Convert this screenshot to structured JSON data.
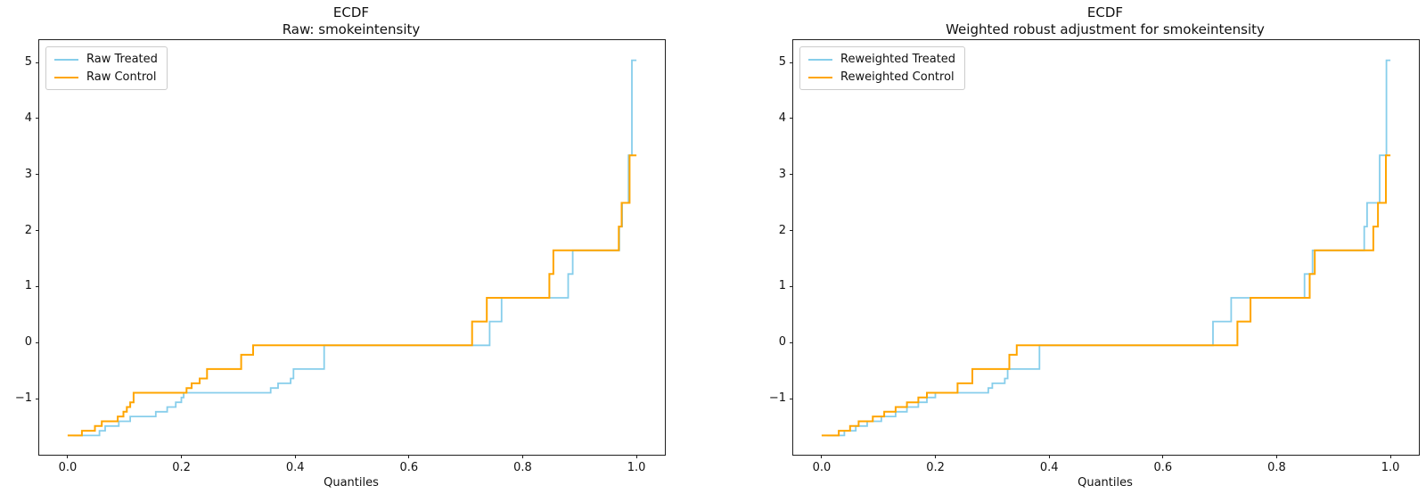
{
  "figure": {
    "background": "#ffffff"
  },
  "colors": {
    "treated": "#87CEEB",
    "control": "#FFA500",
    "spine": "#1f1f1f"
  },
  "chart_data": [
    {
      "type": "line",
      "line_style": "step-quantile-ecdf",
      "title_line1": "ECDF",
      "title_line2": "Raw: smokeintensity",
      "xlabel": "Quantiles",
      "xlim": [
        -0.05,
        1.05
      ],
      "ylim": [
        -2.0,
        5.4
      ],
      "xticks": [
        0.0,
        0.2,
        0.4,
        0.6,
        0.8,
        1.0
      ],
      "xtick_labels": [
        "0.0",
        "0.2",
        "0.4",
        "0.6",
        "0.8",
        "1.0"
      ],
      "yticks": [
        -1,
        0,
        1,
        2,
        3,
        4,
        5
      ],
      "ytick_labels": [
        "−1",
        "0",
        "1",
        "2",
        "3",
        "4",
        "5"
      ],
      "grid": false,
      "legend_position": "upper-left",
      "series": [
        {
          "name": "Raw Treated",
          "color": "#87CEEB",
          "end": 1.0,
          "steps": [
            [
              0.01,
              -1.657
            ],
            [
              0.056,
              -1.572
            ],
            [
              0.066,
              -1.487
            ],
            [
              0.09,
              -1.403
            ],
            [
              0.11,
              -1.318
            ],
            [
              0.155,
              -1.233
            ],
            [
              0.175,
              -1.148
            ],
            [
              0.19,
              -1.064
            ],
            [
              0.2,
              -0.979
            ],
            [
              0.204,
              -0.894
            ],
            [
              0.357,
              -0.809
            ],
            [
              0.37,
              -0.725
            ],
            [
              0.392,
              -0.64
            ],
            [
              0.397,
              -0.47
            ],
            [
              0.451,
              -0.047
            ],
            [
              0.742,
              0.377
            ],
            [
              0.763,
              0.801
            ],
            [
              0.88,
              1.225
            ],
            [
              0.888,
              1.648
            ],
            [
              0.97,
              2.072
            ],
            [
              0.975,
              2.496
            ],
            [
              0.986,
              3.344
            ],
            [
              0.992,
              5.04
            ]
          ]
        },
        {
          "name": "Raw Control",
          "color": "#FFA500",
          "end": 1.0,
          "steps": [
            [
              0.0,
              -1.657
            ],
            [
              0.025,
              -1.572
            ],
            [
              0.048,
              -1.487
            ],
            [
              0.06,
              -1.403
            ],
            [
              0.088,
              -1.318
            ],
            [
              0.098,
              -1.233
            ],
            [
              0.104,
              -1.148
            ],
            [
              0.11,
              -1.064
            ],
            [
              0.116,
              -0.894
            ],
            [
              0.209,
              -0.809
            ],
            [
              0.218,
              -0.725
            ],
            [
              0.232,
              -0.64
            ],
            [
              0.245,
              -0.47
            ],
            [
              0.305,
              -0.216
            ],
            [
              0.326,
              -0.047
            ],
            [
              0.711,
              0.377
            ],
            [
              0.737,
              0.801
            ],
            [
              0.847,
              1.225
            ],
            [
              0.854,
              1.648
            ],
            [
              0.969,
              2.072
            ],
            [
              0.974,
              2.496
            ],
            [
              0.988,
              3.344
            ]
          ]
        }
      ]
    },
    {
      "type": "line",
      "line_style": "step-quantile-ecdf",
      "title_line1": "ECDF",
      "title_line2": "Weighted robust adjustment for smokeintensity",
      "xlabel": "Quantiles",
      "xlim": [
        -0.05,
        1.05
      ],
      "ylim": [
        -2.0,
        5.4
      ],
      "xticks": [
        0.0,
        0.2,
        0.4,
        0.6,
        0.8,
        1.0
      ],
      "xtick_labels": [
        "0.0",
        "0.2",
        "0.4",
        "0.6",
        "0.8",
        "1.0"
      ],
      "yticks": [
        -1,
        0,
        1,
        2,
        3,
        4,
        5
      ],
      "ytick_labels": [
        "−1",
        "0",
        "1",
        "2",
        "3",
        "4",
        "5"
      ],
      "grid": false,
      "legend_position": "upper-left",
      "series": [
        {
          "name": "Reweighted Treated",
          "color": "#87CEEB",
          "end": 1.0,
          "steps": [
            [
              0.01,
              -1.657
            ],
            [
              0.04,
              -1.572
            ],
            [
              0.06,
              -1.487
            ],
            [
              0.08,
              -1.403
            ],
            [
              0.105,
              -1.318
            ],
            [
              0.13,
              -1.233
            ],
            [
              0.15,
              -1.148
            ],
            [
              0.17,
              -1.064
            ],
            [
              0.185,
              -0.979
            ],
            [
              0.2,
              -0.894
            ],
            [
              0.293,
              -0.809
            ],
            [
              0.3,
              -0.725
            ],
            [
              0.322,
              -0.64
            ],
            [
              0.327,
              -0.47
            ],
            [
              0.383,
              -0.047
            ],
            [
              0.688,
              0.377
            ],
            [
              0.72,
              0.801
            ],
            [
              0.849,
              1.225
            ],
            [
              0.863,
              1.648
            ],
            [
              0.954,
              2.072
            ],
            [
              0.959,
              2.496
            ],
            [
              0.981,
              3.344
            ],
            [
              0.993,
              5.04
            ]
          ]
        },
        {
          "name": "Reweighted Control",
          "color": "#FFA500",
          "end": 1.0,
          "steps": [
            [
              0.0,
              -1.657
            ],
            [
              0.03,
              -1.572
            ],
            [
              0.05,
              -1.487
            ],
            [
              0.065,
              -1.403
            ],
            [
              0.09,
              -1.318
            ],
            [
              0.11,
              -1.233
            ],
            [
              0.13,
              -1.148
            ],
            [
              0.15,
              -1.064
            ],
            [
              0.17,
              -0.979
            ],
            [
              0.185,
              -0.894
            ],
            [
              0.239,
              -0.725
            ],
            [
              0.265,
              -0.47
            ],
            [
              0.33,
              -0.216
            ],
            [
              0.343,
              -0.047
            ],
            [
              0.731,
              0.377
            ],
            [
              0.754,
              0.801
            ],
            [
              0.858,
              1.225
            ],
            [
              0.867,
              1.648
            ],
            [
              0.97,
              2.072
            ],
            [
              0.978,
              2.496
            ],
            [
              0.992,
              3.344
            ]
          ]
        }
      ]
    }
  ]
}
